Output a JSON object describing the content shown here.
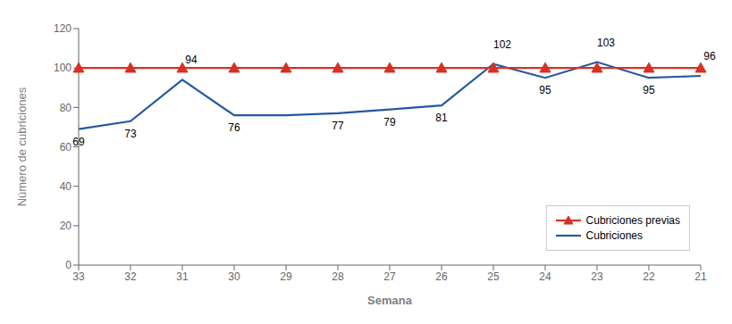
{
  "chart_data": {
    "type": "line",
    "categories": [
      "33",
      "32",
      "31",
      "30",
      "29",
      "28",
      "27",
      "26",
      "25",
      "24",
      "23",
      "22",
      "21"
    ],
    "series": [
      {
        "name": "Cubriciones previas",
        "color": "#D93025",
        "values": [
          100,
          100,
          100,
          100,
          100,
          100,
          100,
          100,
          100,
          100,
          100,
          100,
          100
        ],
        "marker": "triangle"
      },
      {
        "name": "Cubriciones",
        "color": "#2458A5",
        "values": [
          69,
          73,
          94,
          76,
          76,
          77,
          79,
          81,
          102,
          95,
          103,
          95,
          96
        ],
        "marker": "none"
      }
    ],
    "xlabel": "Semana",
    "ylabel": "Número de cubriciones",
    "ylim": [
      0,
      120
    ],
    "yticks": [
      0,
      20,
      40,
      60,
      80,
      100,
      120
    ],
    "grid": false,
    "legend": "lower right",
    "annotations": [
      {
        "x": "33",
        "y": 69,
        "text": "69"
      },
      {
        "x": "32",
        "y": 73,
        "text": "73"
      },
      {
        "x": "31",
        "y": 94,
        "text": "94"
      },
      {
        "x": "30",
        "y": 76,
        "text": "76"
      },
      {
        "x": "28",
        "y": 77,
        "text": "77"
      },
      {
        "x": "27",
        "y": 79,
        "text": "79"
      },
      {
        "x": "26",
        "y": 81,
        "text": "81"
      },
      {
        "x": "25",
        "y": 102,
        "text": "102"
      },
      {
        "x": "24",
        "y": 95,
        "text": "95"
      },
      {
        "x": "23",
        "y": 103,
        "text": "103"
      },
      {
        "x": "22",
        "y": 95,
        "text": "95"
      },
      {
        "x": "21",
        "y": 96,
        "text": "96"
      }
    ]
  }
}
